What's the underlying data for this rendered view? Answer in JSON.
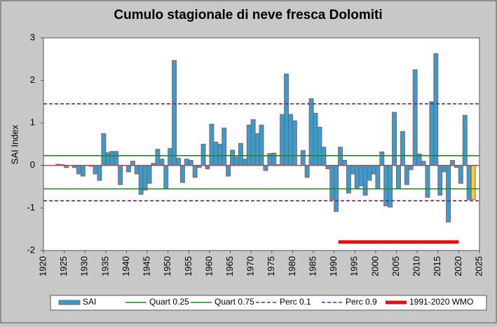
{
  "chart_data": {
    "type": "bar",
    "title": "Cumulo stagionale di neve fresca Dolomiti",
    "y_label": "SAI Index",
    "x": [
      1923,
      1924,
      1925,
      1926,
      1927,
      1928,
      1929,
      1930,
      1931,
      1932,
      1933,
      1934,
      1935,
      1936,
      1937,
      1938,
      1939,
      1940,
      1941,
      1942,
      1943,
      1944,
      1945,
      1946,
      1947,
      1948,
      1949,
      1950,
      1951,
      1952,
      1953,
      1954,
      1955,
      1956,
      1957,
      1958,
      1959,
      1960,
      1961,
      1962,
      1963,
      1964,
      1965,
      1966,
      1967,
      1968,
      1969,
      1970,
      1971,
      1972,
      1973,
      1974,
      1975,
      1976,
      1977,
      1978,
      1979,
      1980,
      1981,
      1982,
      1983,
      1984,
      1985,
      1986,
      1987,
      1988,
      1989,
      1990,
      1991,
      1992,
      1993,
      1994,
      1995,
      1996,
      1997,
      1998,
      1999,
      2000,
      2001,
      2002,
      2003,
      2004,
      2005,
      2006,
      2007,
      2008,
      2009,
      2010,
      2011,
      2012,
      2013,
      2014,
      2015,
      2016,
      2017,
      2018,
      2019,
      2020,
      2021,
      2022,
      2023
    ],
    "series": [
      {
        "name": "SAI",
        "color": "#29a3d6",
        "edge_color": "#b0504a",
        "highlight_color": "#f2d22e",
        "highlight_index": 100,
        "values": [
          0.03,
          0.02,
          -0.05,
          0,
          -0.05,
          -0.2,
          -0.25,
          0,
          -0.02,
          -0.2,
          -0.35,
          0.75,
          0.3,
          0.33,
          0.33,
          -0.45,
          0,
          -0.15,
          0.1,
          -0.2,
          -0.68,
          -0.58,
          -0.42,
          0.05,
          0.38,
          0.15,
          -0.55,
          0.4,
          2.47,
          0.17,
          -0.4,
          0.15,
          0.12,
          -0.28,
          -0.05,
          0.5,
          -0.08,
          0.97,
          0.55,
          0.5,
          0.88,
          -0.25,
          0.36,
          0.2,
          0.52,
          0.15,
          0.95,
          1.08,
          0.75,
          0.95,
          -0.12,
          0.28,
          0.29,
          0.02,
          1.2,
          2.15,
          1.2,
          1.05,
          0,
          0.35,
          -0.28,
          1.57,
          1.23,
          0.9,
          0.43,
          -0.08,
          -0.8,
          -1.08,
          0.43,
          0.12,
          -0.65,
          -0.2,
          -0.55,
          -0.48,
          -0.7,
          -0.35,
          -0.2,
          -0.55,
          0.32,
          -0.95,
          -0.98,
          1.25,
          -0.55,
          0.8,
          -0.45,
          -0.1,
          2.25,
          0.27,
          0.1,
          -0.75,
          1.5,
          2.63,
          -0.7,
          -0.15,
          -1.33,
          0.12,
          -0.05,
          -0.42,
          1.18,
          -0.8,
          -0.8
        ]
      }
    ],
    "lines": [
      {
        "name": "Quart 0.25",
        "color": "#1f8a1f",
        "value": -0.55,
        "dash": false
      },
      {
        "name": "Quart 0.75",
        "color": "#1f8a1f",
        "value": 0.23,
        "dash": false
      },
      {
        "name": "Perc 0.1",
        "color": "#7a1f8a",
        "value": -0.83,
        "dash": true
      },
      {
        "name": "Perc 0.9",
        "color": "#7a1f8a",
        "value": 1.45,
        "dash": true
      },
      {
        "name": "1991-2020 WMO",
        "color": "#e01010",
        "value": -1.8,
        "x": [
          1991,
          2020
        ],
        "dash": false
      }
    ],
    "xlim": [
      1920,
      2025
    ],
    "xticks": [
      1920,
      1925,
      1930,
      1935,
      1940,
      1945,
      1950,
      1955,
      1960,
      1965,
      1970,
      1975,
      1980,
      1985,
      1990,
      1995,
      2000,
      2005,
      2010,
      2015,
      2020,
      2025
    ],
    "ylim": [
      -2,
      3
    ],
    "yticks": [
      -2,
      -1,
      0,
      1,
      2,
      3
    ]
  }
}
